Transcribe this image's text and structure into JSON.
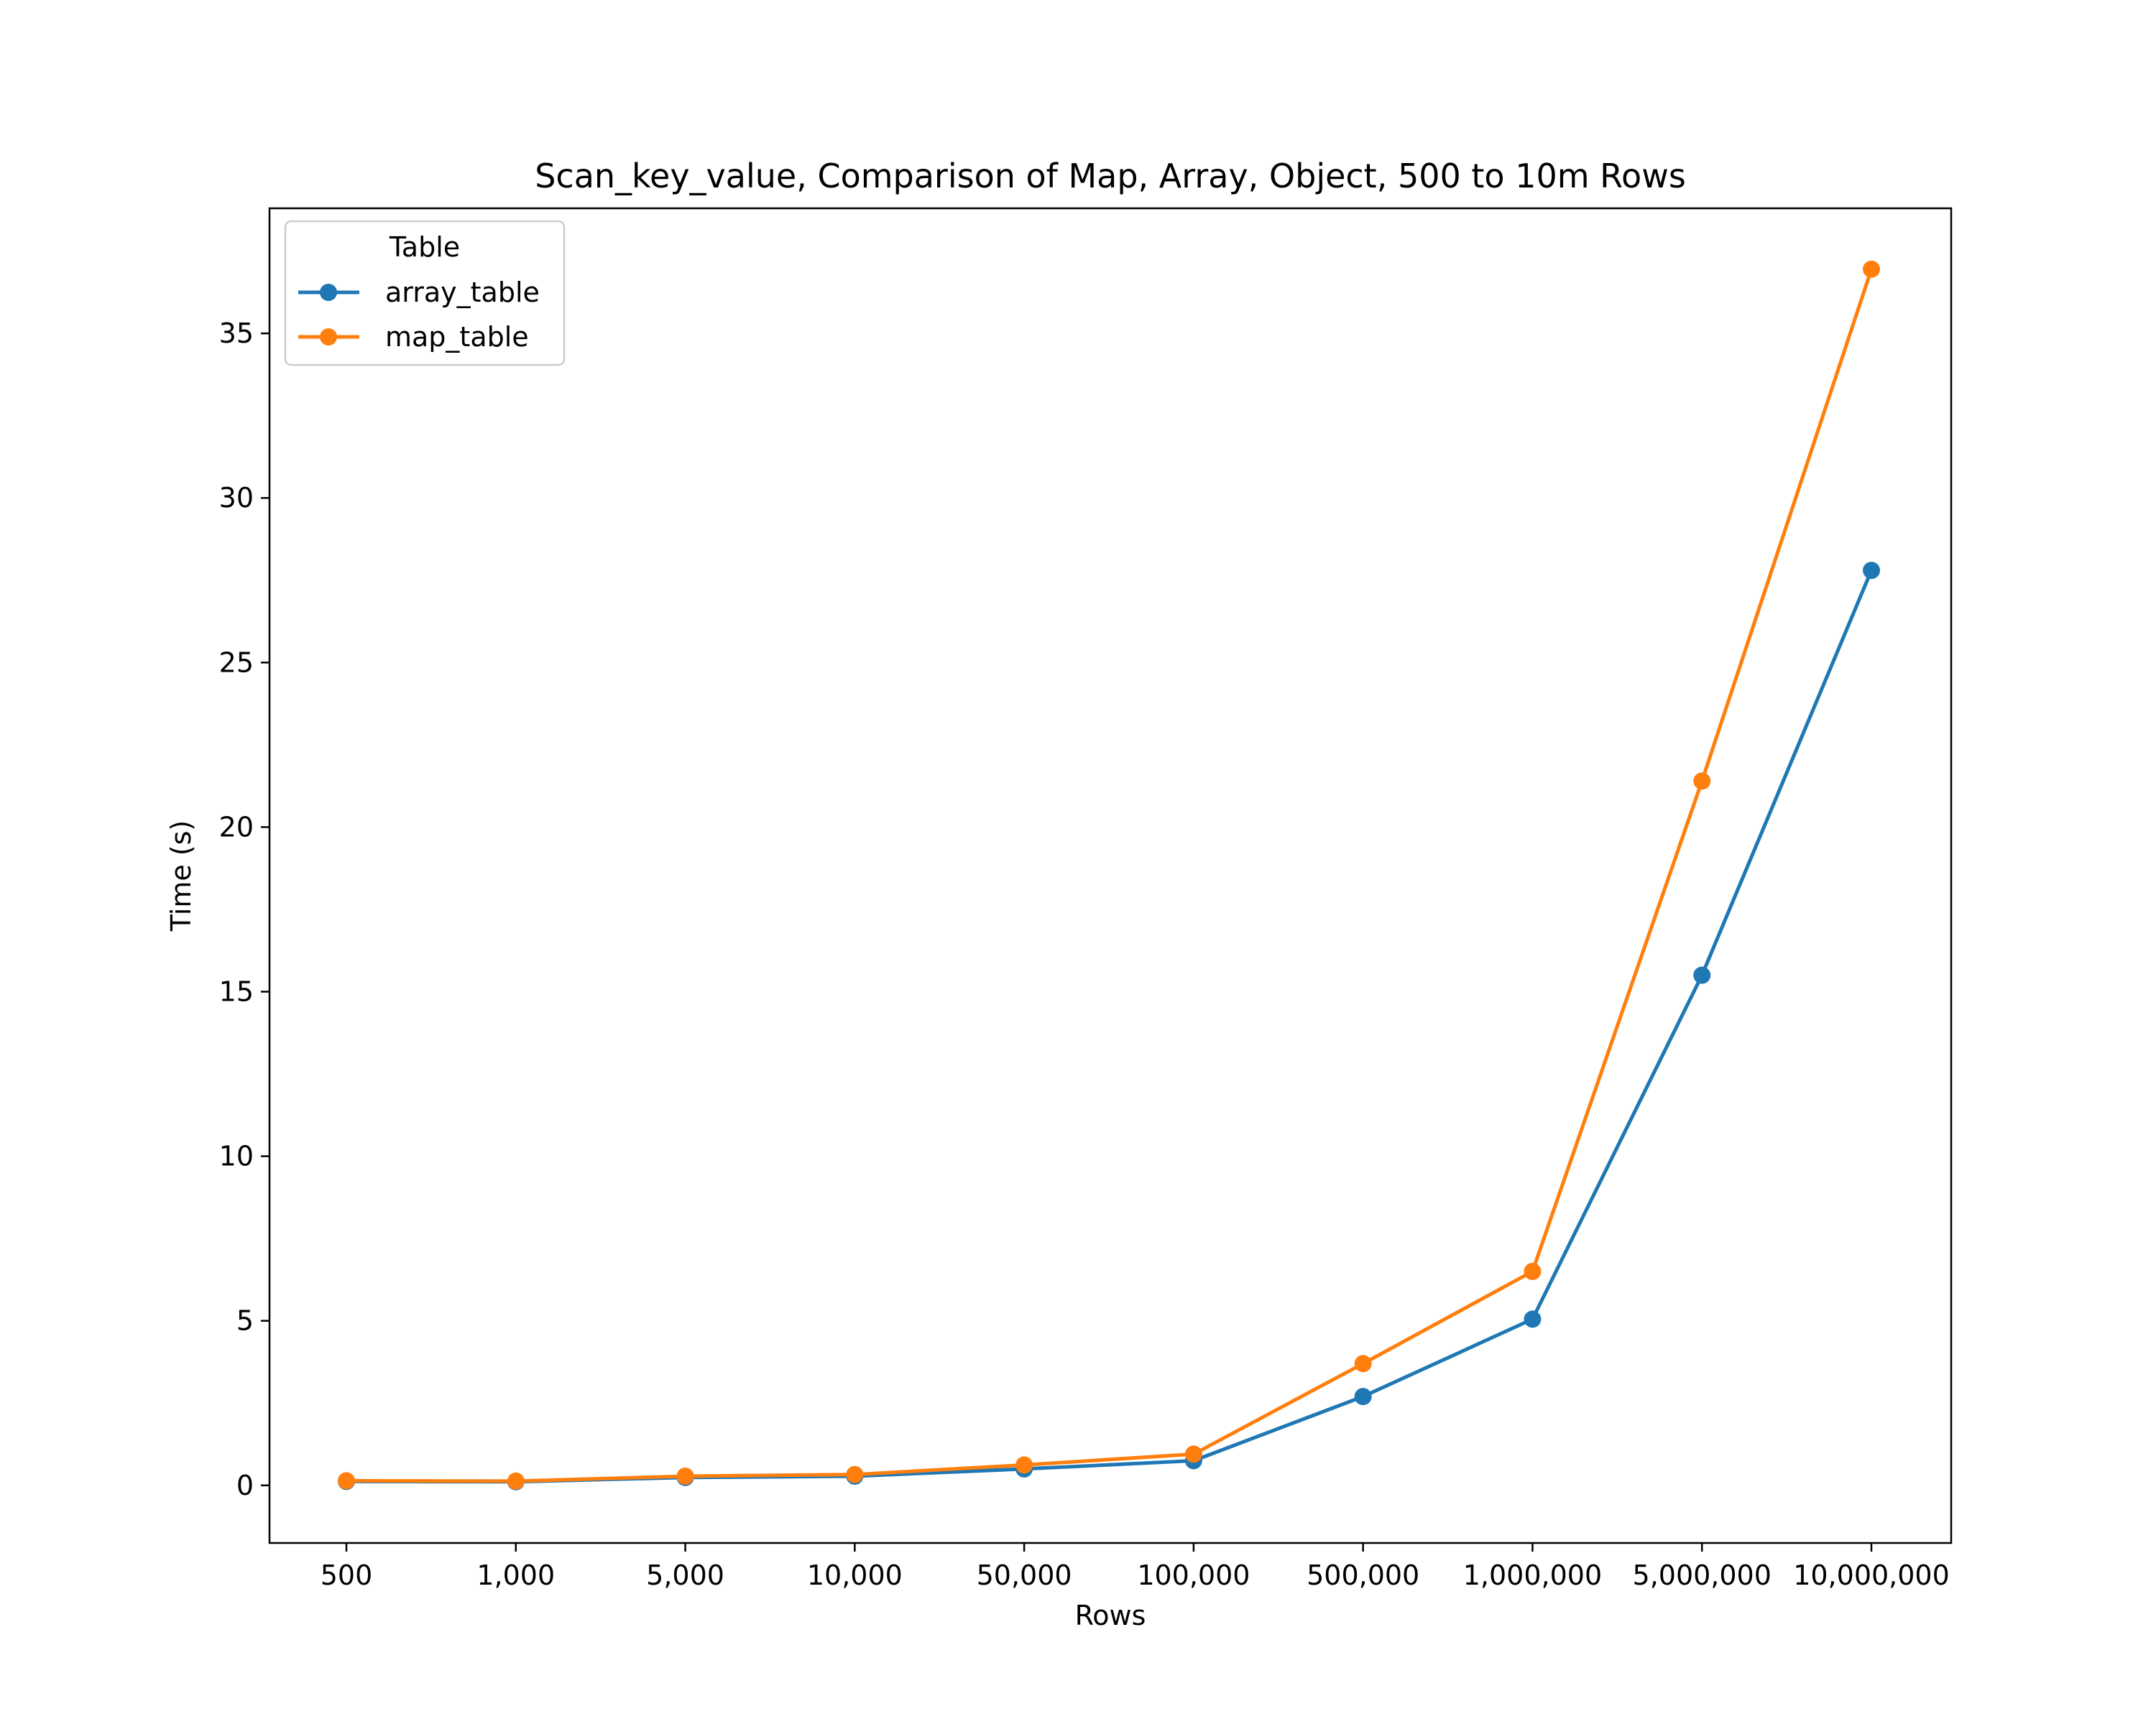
{
  "chart_data": {
    "type": "line",
    "title": "Scan_key_value, Comparison of Map, Array, Object, 500 to 10m Rows",
    "xlabel": "Rows",
    "ylabel": "Time (s)",
    "categories": [
      "500",
      "1,000",
      "5,000",
      "10,000",
      "50,000",
      "100,000",
      "500,000",
      "1,000,000",
      "5,000,000",
      "10,000,000"
    ],
    "ylim": [
      -1.75,
      38.8
    ],
    "yticks": [
      0,
      5,
      10,
      15,
      20,
      25,
      30,
      35
    ],
    "grid": false,
    "legend": {
      "title": "Table",
      "position": "upper-left"
    },
    "series": [
      {
        "name": "array_table",
        "color": "#1f77b4",
        "values": [
          0.12,
          0.11,
          0.24,
          0.28,
          0.5,
          0.75,
          2.7,
          5.05,
          15.5,
          27.8
        ]
      },
      {
        "name": "map_table",
        "color": "#ff7f0e",
        "values": [
          0.14,
          0.13,
          0.28,
          0.33,
          0.62,
          0.95,
          3.7,
          6.5,
          21.4,
          36.95
        ]
      }
    ]
  }
}
